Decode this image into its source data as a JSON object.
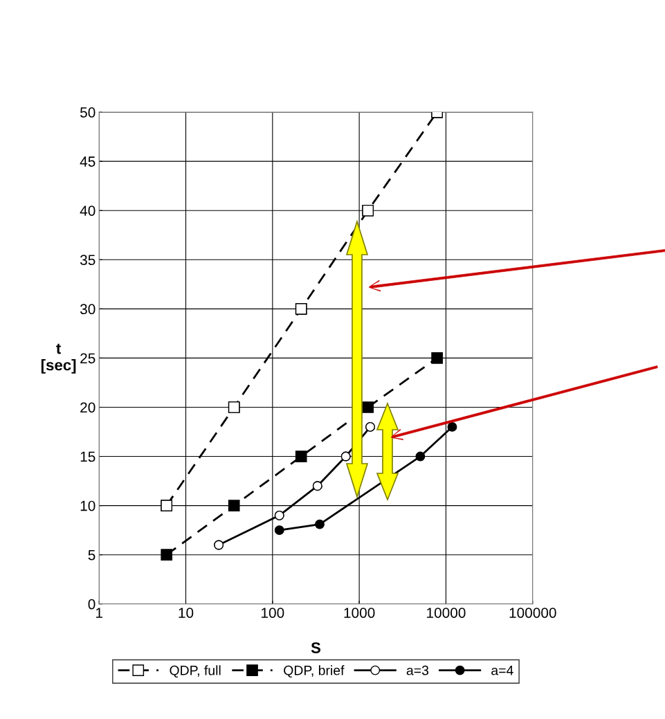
{
  "chart_data": {
    "type": "line",
    "xlabel": "S",
    "ylabel": "t\n[sec]",
    "log": "x",
    "xlim": [
      1,
      100000
    ],
    "xticks": [
      1,
      10,
      100,
      1000,
      10000,
      100000
    ],
    "ylim": [
      0,
      50
    ],
    "yticks": [
      0,
      5,
      10,
      15,
      20,
      25,
      30,
      35,
      40,
      45,
      50
    ],
    "grid": true,
    "legend": "bottom",
    "series": [
      {
        "name": "QDP, full",
        "color": "#000000",
        "marker": "square",
        "colors": [
          "#ffffff",
          "#ffffff",
          "#ffffff",
          "#ffffff",
          "#ffffff"
        ],
        "line_style": "dashed",
        "x": [
          6,
          36,
          214,
          1260,
          7900
        ],
        "values": [
          10,
          20,
          30,
          40,
          50
        ]
      },
      {
        "name": "QDP, brief",
        "color": "#000000",
        "marker": "square",
        "line_style": "dashed",
        "x": [
          6,
          36,
          214,
          1260,
          7900
        ],
        "values": [
          5,
          10,
          15,
          20,
          25
        ]
      },
      {
        "name": "a=3",
        "color": "#000000",
        "marker": "circle",
        "colors": [
          "#ffffff",
          "#ffffff",
          "#ffffff",
          "#ffffff",
          "#ffffff"
        ],
        "line_style": "solid",
        "x": [
          24,
          120,
          330,
          700,
          1340
        ],
        "values": [
          6,
          9,
          12,
          15,
          18
        ]
      },
      {
        "name": "a=4",
        "color": "#000000",
        "marker": "circle",
        "line_style": "solid",
        "x": [
          120,
          350,
          5060,
          11800
        ],
        "values": [
          7.5,
          8.1,
          15,
          18
        ]
      }
    ]
  }
}
